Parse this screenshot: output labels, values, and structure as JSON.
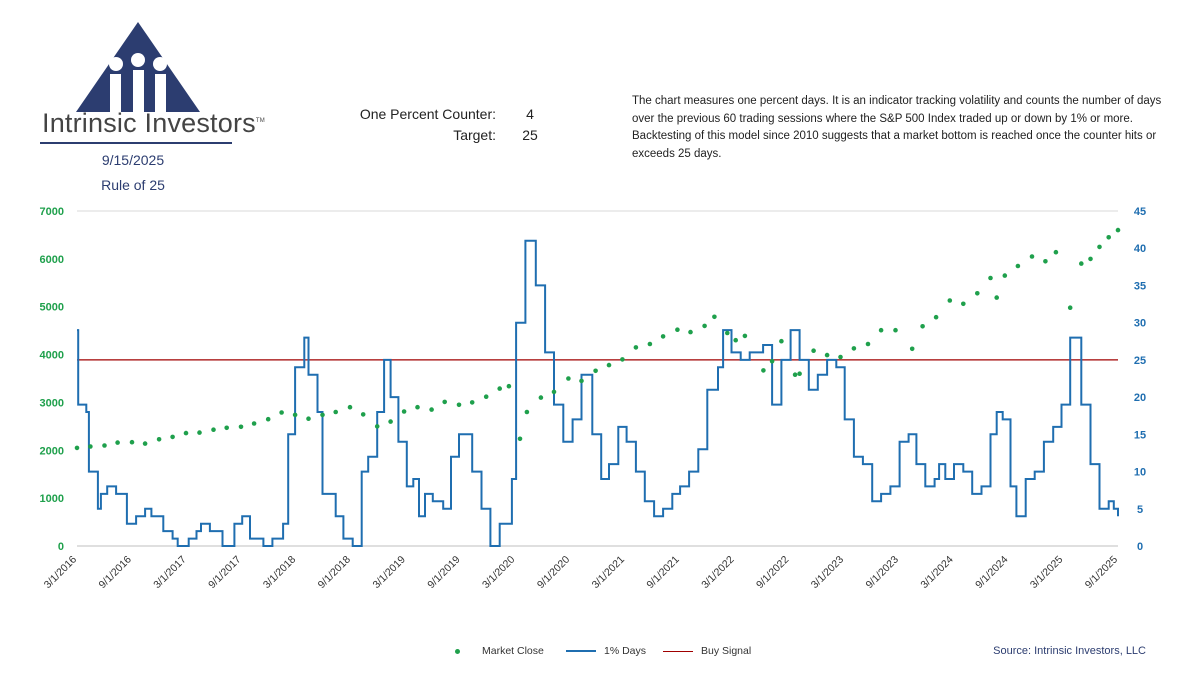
{
  "brand": {
    "name": "Intrinsic Investors",
    "trademark": "TM"
  },
  "header": {
    "date": "9/15/2025",
    "subtitle": "Rule of 25",
    "counter_label": "One Percent Counter:",
    "counter_value": "4",
    "target_label": "Target:",
    "target_value": "25",
    "description": "The chart measures one percent days.  It is an indicator tracking volatility and counts the number of days over the previous 60 trading sessions where the S&P 500 Index traded up or down by 1% or more. Backtesting of this model since 2010 suggests that a market bottom is reached once the counter hits or exceeds 25 days."
  },
  "colors": {
    "market": "#1fa04c",
    "days": "#1f6eb0",
    "signal": "#a00000",
    "brand": "#2c3d70"
  },
  "source": "Source: Intrinsic Investors, LLC",
  "chart_data": {
    "type": "line",
    "x_ticks": [
      "3/1/2016",
      "9/1/2016",
      "3/1/2017",
      "9/1/2017",
      "3/1/2018",
      "9/1/2018",
      "3/1/2019",
      "9/1/2019",
      "3/1/2020",
      "9/1/2020",
      "3/1/2021",
      "9/1/2021",
      "3/1/2022",
      "9/1/2022",
      "3/1/2023",
      "9/1/2023",
      "3/1/2024",
      "9/1/2024",
      "3/1/2025",
      "9/1/2025"
    ],
    "x_range": [
      "2016-03-01",
      "2025-09-15"
    ],
    "y_left": {
      "range": [
        0,
        7000
      ],
      "ticks": [
        "0",
        "1000",
        "2000",
        "3000",
        "4000",
        "5000",
        "6000",
        "7000"
      ]
    },
    "y_right": {
      "range": [
        0,
        45
      ],
      "ticks": [
        "0",
        "5",
        "10",
        "15",
        "20",
        "25",
        "30",
        "35",
        "40",
        "45"
      ]
    },
    "grid": "horizontal (top border only)",
    "legend": "bottom",
    "series": [
      {
        "name": "Market Close",
        "style": "dots",
        "axis": "left",
        "points": [
          [
            "2016-03-01",
            2050
          ],
          [
            "2016-04-15",
            2080
          ],
          [
            "2016-06-01",
            2100
          ],
          [
            "2016-07-15",
            2160
          ],
          [
            "2016-09-01",
            2170
          ],
          [
            "2016-10-15",
            2140
          ],
          [
            "2016-12-01",
            2230
          ],
          [
            "2017-01-15",
            2280
          ],
          [
            "2017-03-01",
            2360
          ],
          [
            "2017-04-15",
            2370
          ],
          [
            "2017-06-01",
            2430
          ],
          [
            "2017-07-15",
            2470
          ],
          [
            "2017-09-01",
            2490
          ],
          [
            "2017-10-15",
            2560
          ],
          [
            "2017-12-01",
            2650
          ],
          [
            "2018-01-15",
            2790
          ],
          [
            "2018-03-01",
            2740
          ],
          [
            "2018-04-15",
            2660
          ],
          [
            "2018-06-01",
            2740
          ],
          [
            "2018-07-15",
            2800
          ],
          [
            "2018-09-01",
            2900
          ],
          [
            "2018-10-15",
            2750
          ],
          [
            "2018-12-01",
            2500
          ],
          [
            "2019-01-15",
            2600
          ],
          [
            "2019-03-01",
            2810
          ],
          [
            "2019-04-15",
            2900
          ],
          [
            "2019-06-01",
            2850
          ],
          [
            "2019-07-15",
            3010
          ],
          [
            "2019-09-01",
            2950
          ],
          [
            "2019-10-15",
            3000
          ],
          [
            "2019-12-01",
            3120
          ],
          [
            "2020-01-15",
            3290
          ],
          [
            "2020-02-15",
            3340
          ],
          [
            "2020-03-23",
            2240
          ],
          [
            "2020-04-15",
            2800
          ],
          [
            "2020-06-01",
            3100
          ],
          [
            "2020-07-15",
            3220
          ],
          [
            "2020-09-01",
            3500
          ],
          [
            "2020-10-15",
            3450
          ],
          [
            "2020-12-01",
            3660
          ],
          [
            "2021-01-15",
            3780
          ],
          [
            "2021-03-01",
            3900
          ],
          [
            "2021-04-15",
            4150
          ],
          [
            "2021-06-01",
            4220
          ],
          [
            "2021-07-15",
            4380
          ],
          [
            "2021-09-01",
            4520
          ],
          [
            "2021-10-15",
            4470
          ],
          [
            "2021-12-01",
            4600
          ],
          [
            "2022-01-03",
            4790
          ],
          [
            "2022-02-15",
            4450
          ],
          [
            "2022-03-15",
            4300
          ],
          [
            "2022-04-15",
            4390
          ],
          [
            "2022-06-16",
            3670
          ],
          [
            "2022-07-15",
            3860
          ],
          [
            "2022-08-15",
            4280
          ],
          [
            "2022-09-30",
            3580
          ],
          [
            "2022-10-15",
            3600
          ],
          [
            "2022-12-01",
            4080
          ],
          [
            "2023-01-15",
            3990
          ],
          [
            "2023-03-01",
            3950
          ],
          [
            "2023-04-15",
            4130
          ],
          [
            "2023-06-01",
            4220
          ],
          [
            "2023-07-15",
            4510
          ],
          [
            "2023-09-01",
            4510
          ],
          [
            "2023-10-27",
            4120
          ],
          [
            "2023-12-01",
            4590
          ],
          [
            "2024-01-15",
            4780
          ],
          [
            "2024-03-01",
            5130
          ],
          [
            "2024-04-15",
            5060
          ],
          [
            "2024-06-01",
            5280
          ],
          [
            "2024-07-15",
            5600
          ],
          [
            "2024-08-05",
            5190
          ],
          [
            "2024-09-01",
            5650
          ],
          [
            "2024-10-15",
            5850
          ],
          [
            "2024-12-01",
            6050
          ],
          [
            "2025-01-15",
            5950
          ],
          [
            "2025-02-19",
            6140
          ],
          [
            "2025-04-08",
            4980
          ],
          [
            "2025-05-15",
            5900
          ],
          [
            "2025-06-15",
            6000
          ],
          [
            "2025-07-15",
            6250
          ],
          [
            "2025-08-15",
            6450
          ],
          [
            "2025-09-15",
            6600
          ]
        ]
      },
      {
        "name": "1% Days",
        "style": "step-line",
        "axis": "right",
        "points": [
          [
            "2016-03-01",
            29
          ],
          [
            "2016-03-05",
            19
          ],
          [
            "2016-04-01",
            18
          ],
          [
            "2016-04-10",
            10
          ],
          [
            "2016-05-01",
            10
          ],
          [
            "2016-05-10",
            5
          ],
          [
            "2016-05-20",
            7
          ],
          [
            "2016-06-10",
            8
          ],
          [
            "2016-07-10",
            7
          ],
          [
            "2016-08-01",
            7
          ],
          [
            "2016-08-15",
            3
          ],
          [
            "2016-09-15",
            4
          ],
          [
            "2016-10-15",
            5
          ],
          [
            "2016-11-05",
            4
          ],
          [
            "2016-12-15",
            2
          ],
          [
            "2017-01-15",
            1
          ],
          [
            "2017-02-01",
            0
          ],
          [
            "2017-03-10",
            1
          ],
          [
            "2017-04-05",
            2
          ],
          [
            "2017-04-20",
            3
          ],
          [
            "2017-05-20",
            2
          ],
          [
            "2017-07-01",
            0
          ],
          [
            "2017-08-10",
            3
          ],
          [
            "2017-09-05",
            4
          ],
          [
            "2017-10-01",
            1
          ],
          [
            "2017-11-15",
            0
          ],
          [
            "2017-12-15",
            1
          ],
          [
            "2018-01-20",
            3
          ],
          [
            "2018-02-06",
            15
          ],
          [
            "2018-03-01",
            24
          ],
          [
            "2018-04-01",
            28
          ],
          [
            "2018-04-15",
            23
          ],
          [
            "2018-05-15",
            18
          ],
          [
            "2018-06-01",
            7
          ],
          [
            "2018-07-15",
            4
          ],
          [
            "2018-08-10",
            1
          ],
          [
            "2018-09-10",
            0
          ],
          [
            "2018-10-10",
            10
          ],
          [
            "2018-11-01",
            12
          ],
          [
            "2018-12-01",
            18
          ],
          [
            "2018-12-24",
            25
          ],
          [
            "2019-01-15",
            20
          ],
          [
            "2019-02-10",
            14
          ],
          [
            "2019-03-10",
            8
          ],
          [
            "2019-04-01",
            9
          ],
          [
            "2019-04-20",
            4
          ],
          [
            "2019-05-10",
            7
          ],
          [
            "2019-06-05",
            6
          ],
          [
            "2019-07-10",
            5
          ],
          [
            "2019-08-05",
            12
          ],
          [
            "2019-09-01",
            15
          ],
          [
            "2019-10-15",
            10
          ],
          [
            "2019-11-15",
            5
          ],
          [
            "2019-12-15",
            0
          ],
          [
            "2020-01-15",
            3
          ],
          [
            "2020-02-25",
            9
          ],
          [
            "2020-03-10",
            30
          ],
          [
            "2020-04-10",
            41
          ],
          [
            "2020-05-15",
            35
          ],
          [
            "2020-06-15",
            26
          ],
          [
            "2020-07-15",
            19
          ],
          [
            "2020-08-15",
            14
          ],
          [
            "2020-09-15",
            17
          ],
          [
            "2020-10-15",
            23
          ],
          [
            "2020-11-20",
            15
          ],
          [
            "2020-12-20",
            9
          ],
          [
            "2021-01-15",
            11
          ],
          [
            "2021-02-15",
            16
          ],
          [
            "2021-03-15",
            14
          ],
          [
            "2021-04-15",
            10
          ],
          [
            "2021-05-15",
            6
          ],
          [
            "2021-06-15",
            4
          ],
          [
            "2021-07-15",
            5
          ],
          [
            "2021-08-15",
            7
          ],
          [
            "2021-09-10",
            8
          ],
          [
            "2021-10-10",
            10
          ],
          [
            "2021-11-10",
            13
          ],
          [
            "2021-12-10",
            21
          ],
          [
            "2022-01-15",
            24
          ],
          [
            "2022-02-01",
            29
          ],
          [
            "2022-03-01",
            26
          ],
          [
            "2022-04-01",
            25
          ],
          [
            "2022-05-01",
            26
          ],
          [
            "2022-06-15",
            27
          ],
          [
            "2022-07-15",
            19
          ],
          [
            "2022-08-15",
            25
          ],
          [
            "2022-09-15",
            29
          ],
          [
            "2022-10-15",
            25
          ],
          [
            "2022-11-15",
            21
          ],
          [
            "2022-12-15",
            23
          ],
          [
            "2023-01-15",
            25
          ],
          [
            "2023-02-15",
            24
          ],
          [
            "2023-03-15",
            17
          ],
          [
            "2023-04-15",
            12
          ],
          [
            "2023-05-15",
            11
          ],
          [
            "2023-06-15",
            6
          ],
          [
            "2023-07-15",
            7
          ],
          [
            "2023-08-15",
            8
          ],
          [
            "2023-09-15",
            14
          ],
          [
            "2023-10-15",
            15
          ],
          [
            "2023-11-10",
            11
          ],
          [
            "2023-12-10",
            8
          ],
          [
            "2024-01-10",
            9
          ],
          [
            "2024-01-25",
            11
          ],
          [
            "2024-02-15",
            9
          ],
          [
            "2024-03-15",
            11
          ],
          [
            "2024-04-15",
            10
          ],
          [
            "2024-05-15",
            7
          ],
          [
            "2024-06-15",
            8
          ],
          [
            "2024-07-15",
            15
          ],
          [
            "2024-08-05",
            18
          ],
          [
            "2024-08-25",
            17
          ],
          [
            "2024-09-20",
            8
          ],
          [
            "2024-10-10",
            4
          ],
          [
            "2024-11-10",
            9
          ],
          [
            "2024-12-10",
            10
          ],
          [
            "2025-01-10",
            14
          ],
          [
            "2025-02-10",
            16
          ],
          [
            "2025-03-10",
            19
          ],
          [
            "2025-04-08",
            28
          ],
          [
            "2025-05-15",
            19
          ],
          [
            "2025-06-15",
            11
          ],
          [
            "2025-07-15",
            5
          ],
          [
            "2025-08-15",
            6
          ],
          [
            "2025-09-01",
            5
          ],
          [
            "2025-09-15",
            4
          ]
        ]
      },
      {
        "name": "Buy Signal",
        "style": "horizontal-line",
        "axis": "right",
        "value": 25
      }
    ]
  }
}
